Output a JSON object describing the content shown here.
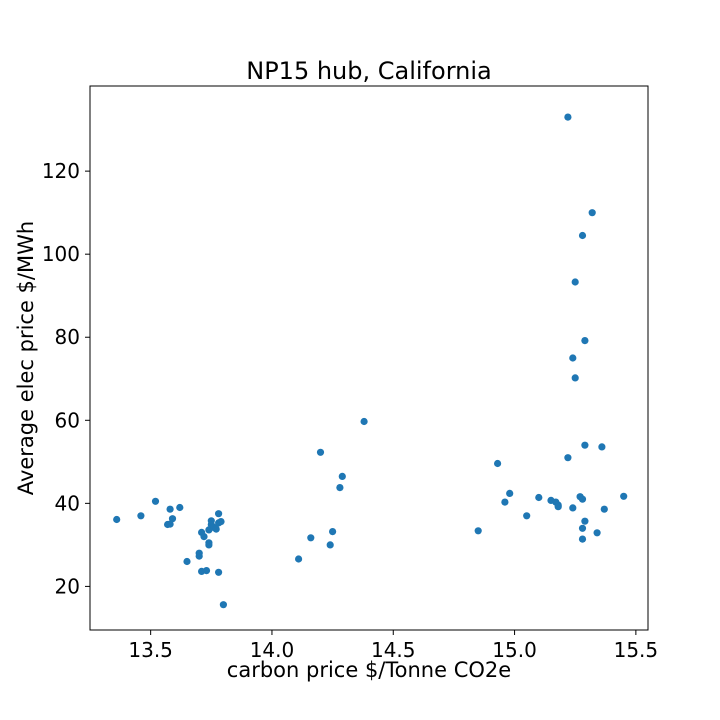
{
  "chart_data": {
    "type": "scatter",
    "title": "NP15 hub, California",
    "xlabel": "carbon price $/Tonne CO2e",
    "ylabel": "Average elec price $/MWh",
    "xlim": [
      13.25,
      15.55
    ],
    "ylim": [
      9.5,
      140.5
    ],
    "xticks": [
      13.5,
      14.0,
      14.5,
      15.0,
      15.5
    ],
    "xtick_labels": [
      "13.5",
      "14.0",
      "14.5",
      "15.0",
      "15.5"
    ],
    "yticks": [
      20,
      40,
      60,
      80,
      100,
      120
    ],
    "ytick_labels": [
      "20",
      "40",
      "60",
      "80",
      "100",
      "120"
    ],
    "grid": false,
    "color": "#1f77b4",
    "points": [
      [
        13.36,
        36.1
      ],
      [
        13.46,
        37.0
      ],
      [
        13.52,
        40.5
      ],
      [
        13.57,
        34.9
      ],
      [
        13.58,
        38.6
      ],
      [
        13.58,
        35.0
      ],
      [
        13.59,
        36.3
      ],
      [
        13.62,
        39.0
      ],
      [
        13.65,
        26.0
      ],
      [
        13.7,
        27.3
      ],
      [
        13.7,
        28.0
      ],
      [
        13.71,
        33.0
      ],
      [
        13.72,
        32.0
      ],
      [
        13.71,
        23.6
      ],
      [
        13.73,
        23.8
      ],
      [
        13.74,
        30.5
      ],
      [
        13.74,
        30.0
      ],
      [
        13.75,
        35.8
      ],
      [
        13.75,
        34.9
      ],
      [
        13.74,
        33.6
      ],
      [
        13.76,
        34.2
      ],
      [
        13.77,
        33.8
      ],
      [
        13.78,
        35.3
      ],
      [
        13.78,
        37.5
      ],
      [
        13.79,
        35.6
      ],
      [
        13.78,
        23.4
      ],
      [
        13.8,
        15.6
      ],
      [
        14.11,
        26.6
      ],
      [
        14.16,
        31.7
      ],
      [
        14.2,
        52.3
      ],
      [
        14.24,
        30.0
      ],
      [
        14.25,
        33.2
      ],
      [
        14.28,
        43.8
      ],
      [
        14.29,
        46.5
      ],
      [
        14.38,
        59.7
      ],
      [
        14.85,
        33.4
      ],
      [
        14.93,
        49.6
      ],
      [
        14.96,
        40.3
      ],
      [
        14.98,
        42.4
      ],
      [
        15.05,
        37.0
      ],
      [
        15.1,
        41.4
      ],
      [
        15.15,
        40.7
      ],
      [
        15.17,
        40.3
      ],
      [
        15.18,
        39.6
      ],
      [
        15.18,
        39.2
      ],
      [
        15.22,
        133.0
      ],
      [
        15.22,
        51.0
      ],
      [
        15.24,
        75.0
      ],
      [
        15.24,
        38.9
      ],
      [
        15.25,
        93.3
      ],
      [
        15.25,
        70.2
      ],
      [
        15.27,
        41.6
      ],
      [
        15.28,
        41.0
      ],
      [
        15.28,
        34.0
      ],
      [
        15.28,
        31.4
      ],
      [
        15.29,
        35.7
      ],
      [
        15.28,
        104.5
      ],
      [
        15.29,
        79.2
      ],
      [
        15.29,
        54.0
      ],
      [
        15.32,
        110.0
      ],
      [
        15.34,
        32.9
      ],
      [
        15.36,
        53.6
      ],
      [
        15.37,
        38.6
      ],
      [
        15.45,
        41.7
      ]
    ]
  }
}
